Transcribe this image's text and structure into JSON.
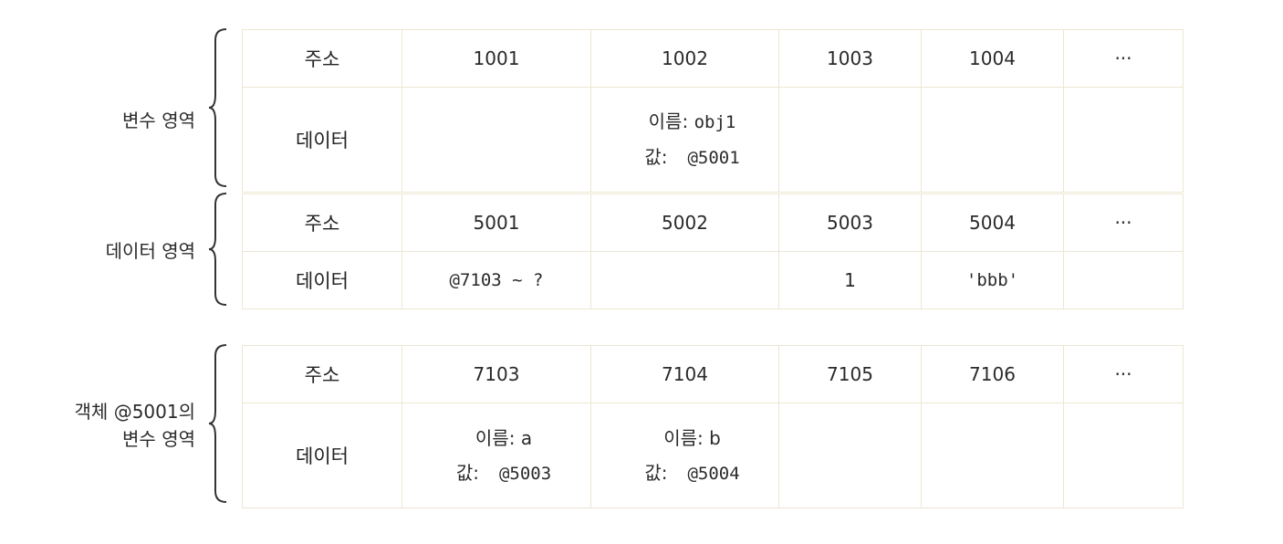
{
  "groups": [
    {
      "label_lines": [
        "변수 영역"
      ],
      "header": "주소",
      "data_label": "데이터",
      "addresses": [
        "1001",
        "1002",
        "1003",
        "1004",
        "···"
      ],
      "cells": [
        null,
        {
          "name_label": "이름:",
          "name": "obj1",
          "value_label": "값:",
          "value": "@5001"
        },
        null,
        null,
        null
      ]
    },
    {
      "label_lines": [
        "데이터 영역"
      ],
      "header": "주소",
      "data_label": "데이터",
      "addresses": [
        "5001",
        "5002",
        "5003",
        "5004",
        "···"
      ],
      "cells": [
        "@7103 ~ ?",
        "",
        "1",
        "'bbb'",
        ""
      ]
    },
    {
      "label_lines": [
        "객체 @5001의",
        "변수 영역"
      ],
      "header": "주소",
      "data_label": "데이터",
      "addresses": [
        "7103",
        "7104",
        "7105",
        "7106",
        "···"
      ],
      "cells": [
        {
          "name_label": "이름:",
          "name": "a",
          "value_label": "값:",
          "value": "@5003"
        },
        {
          "name_label": "이름:",
          "name": "b",
          "value_label": "값:",
          "value": "@5004"
        },
        null,
        null,
        null
      ]
    }
  ]
}
